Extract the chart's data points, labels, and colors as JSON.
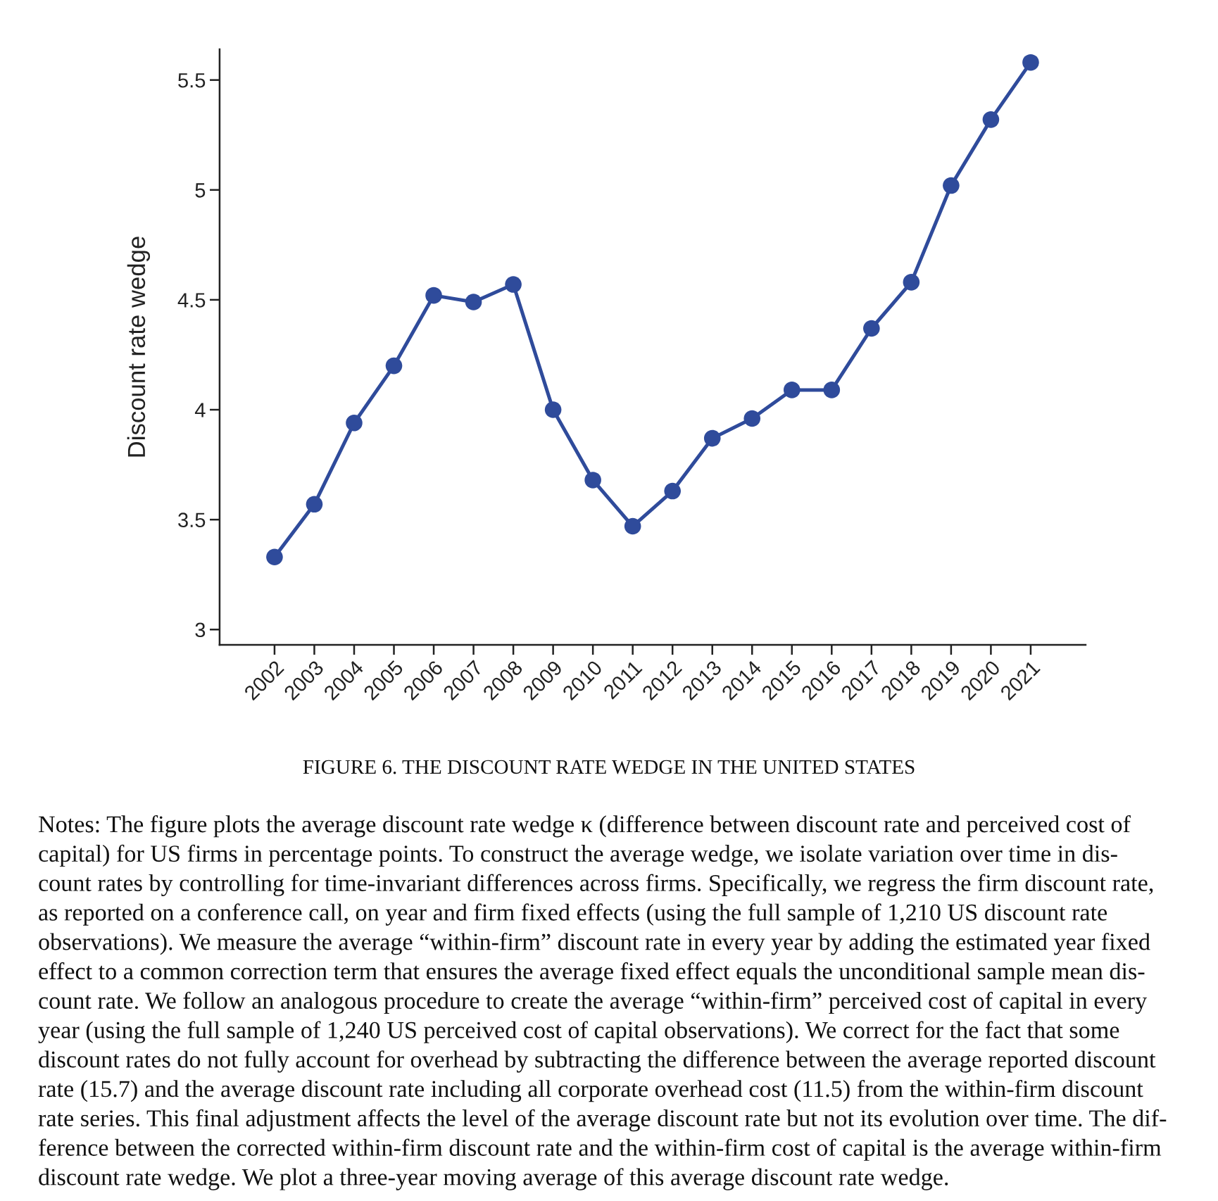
{
  "chart_data": {
    "type": "line",
    "title": "FIGURE 6. THE DISCOUNT RATE WEDGE IN THE UNITED STATES",
    "ylabel": "Discount rate wedge",
    "categories": [
      "2002",
      "2003",
      "2004",
      "2005",
      "2006",
      "2007",
      "2008",
      "2009",
      "2010",
      "2011",
      "2012",
      "2013",
      "2014",
      "2015",
      "2016",
      "2017",
      "2018",
      "2019",
      "2020",
      "2021"
    ],
    "series": [
      {
        "color": "#2f4b9b",
        "values": [
          3.33,
          3.57,
          3.94,
          4.2,
          4.52,
          4.49,
          4.57,
          4.0,
          3.68,
          3.47,
          3.63,
          3.87,
          3.96,
          4.09,
          4.09,
          4.37,
          4.58,
          5.02,
          5.32,
          5.58
        ]
      }
    ],
    "ylim": [
      2.93,
      5.64
    ],
    "yticks": [
      3,
      3.5,
      4,
      4.5,
      5,
      5.5
    ],
    "marker": "circle",
    "line_style": "solid",
    "grid": false,
    "annotations": [
      "Notes: The figure plots the average discount rate wedge κ (difference between discount rate and perceived cost of\ncapital) for US firms in percentage points. To construct the average wedge, we isolate variation over time in dis-\ncount rates by controlling for time-invariant differences across firms. Specifically, we regress the firm discount rate,\nas reported on a conference call, on year and firm fixed effects (using the full sample of 1,210 US discount rate\nobservations). We measure the average “within-firm” discount rate in every year by adding the estimated year fixed\neffect to a common correction term that ensures the average fixed effect equals the unconditional sample mean dis-\ncount rate. We follow an analogous procedure to create the average “within-firm” perceived cost of capital in every\nyear (using the full sample of 1,240 US perceived cost of capital observations). We correct for the fact that some\ndiscount rates do not fully account for overhead by subtracting the difference between the average reported discount\nrate (15.7) and the average discount rate including all corporate overhead cost (11.5) from the within-firm discount\nrate series. This final adjustment affects the level of the average discount rate but not its evolution over time. The dif-\nference between the corrected within-firm discount rate and the within-firm cost of capital is the average within-firm\ndiscount rate wedge. We plot a three-year moving average of this average discount rate wedge."
    ]
  }
}
